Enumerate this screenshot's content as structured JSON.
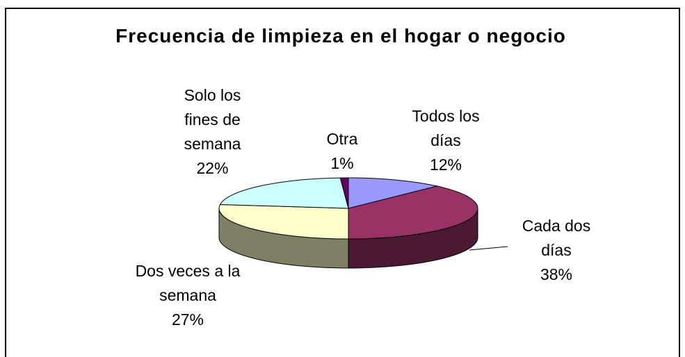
{
  "chart_data": {
    "type": "pie",
    "title": "Frecuencia de limpieza en el hogar o negocio",
    "categories": [
      "Todos los días",
      "Cada dos días",
      "Dos veces a la semana",
      "Solo los fines de semana",
      "Otra"
    ],
    "values": [
      12,
      38,
      27,
      22,
      1
    ],
    "value_labels": [
      "12%",
      "38%",
      "27%",
      "22%",
      "1%"
    ],
    "colors": [
      "#9999ff",
      "#993366",
      "#ffffcc",
      "#ccffff",
      "#660066"
    ]
  }
}
